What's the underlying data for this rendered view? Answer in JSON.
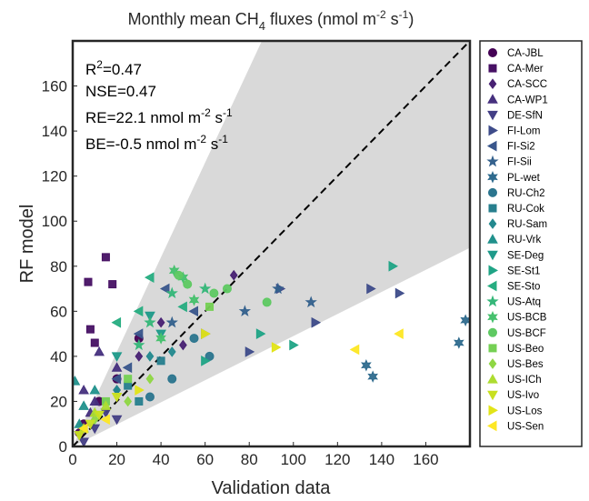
{
  "chart_data": {
    "type": "scatter",
    "title": [
      "Monthly mean CH",
      "4",
      " fluxes (nmol m",
      "-2",
      " s",
      "-1",
      ")"
    ],
    "x_label": "Validation data",
    "y_label": "RF model",
    "annotations": [
      [
        "R",
        "2",
        "=0.47"
      ],
      [
        "NSE=0.47"
      ],
      [
        "RE=22.1 nmol m",
        "-2",
        " s",
        "-1"
      ],
      [
        "BE=-0.5 nmol m",
        "-2",
        " s",
        "-1"
      ]
    ],
    "xlim": [
      0,
      180
    ],
    "ylim": [
      0,
      180
    ],
    "xticks": [
      0,
      20,
      40,
      60,
      80,
      100,
      120,
      140,
      160
    ],
    "yticks": [
      0,
      20,
      40,
      60,
      80,
      100,
      120,
      140,
      160
    ],
    "band": {
      "lower_slope": 0.49,
      "upper_slope": 2.1,
      "color": "#d9d9d9"
    },
    "reference_line": {
      "slope": 1,
      "color": "#000000"
    },
    "legend": "right",
    "series": [
      {
        "name": "CA-JBL",
        "color": "#440154",
        "marker": "o",
        "x": [
          5,
          20,
          30,
          12,
          3
        ],
        "y": [
          10,
          30,
          48,
          20,
          6
        ]
      },
      {
        "name": "CA-Mer",
        "color": "#471164",
        "marker": "s",
        "x": [
          7,
          15,
          18,
          10,
          8
        ],
        "y": [
          73,
          84,
          72,
          46,
          52
        ]
      },
      {
        "name": "CA-SCC",
        "color": "#482173",
        "marker": "d",
        "x": [
          73,
          30,
          40,
          50,
          20
        ],
        "y": [
          76,
          40,
          55,
          45,
          25
        ]
      },
      {
        "name": "CA-WP1",
        "color": "#46307e",
        "marker": "^",
        "x": [
          10,
          12,
          5,
          20,
          8
        ],
        "y": [
          20,
          42,
          25,
          35,
          15
        ]
      },
      {
        "name": "DE-SfN",
        "color": "#433e85",
        "marker": "v",
        "x": [
          5,
          10,
          15,
          20,
          3
        ],
        "y": [
          2,
          8,
          15,
          12,
          5
        ]
      },
      {
        "name": "FI-Lom",
        "color": "#3e4c8a",
        "marker": ">",
        "x": [
          60,
          94,
          135,
          148,
          110,
          80
        ],
        "y": [
          50,
          70,
          70,
          68,
          55,
          42
        ]
      },
      {
        "name": "FI-Si2",
        "color": "#39568c",
        "marker": "<",
        "x": [
          42,
          30,
          25,
          55,
          20
        ],
        "y": [
          70,
          50,
          35,
          60,
          30
        ]
      },
      {
        "name": "FI-Sii",
        "color": "#34618d",
        "marker": "p",
        "x": [
          93,
          108,
          78,
          45
        ],
        "y": [
          70,
          64,
          60,
          55
        ]
      },
      {
        "name": "PL-wet",
        "color": "#2f6b8e",
        "marker": "h",
        "x": [
          178,
          175,
          133,
          136
        ],
        "y": [
          56,
          46,
          36,
          31
        ]
      },
      {
        "name": "RU-Ch2",
        "color": "#2b758e",
        "marker": "o",
        "x": [
          55,
          62,
          35,
          45
        ],
        "y": [
          48,
          40,
          22,
          30
        ]
      },
      {
        "name": "RU-Cok",
        "color": "#277f8e",
        "marker": "s",
        "x": [
          25,
          40,
          30
        ],
        "y": [
          27,
          38,
          20
        ]
      },
      {
        "name": "RU-Sam",
        "color": "#23898e",
        "marker": "d",
        "x": [
          20,
          35,
          45
        ],
        "y": [
          25,
          40,
          42
        ]
      },
      {
        "name": "RU-Vrk",
        "color": "#21918c",
        "marker": "^",
        "x": [
          1,
          10,
          5,
          3
        ],
        "y": [
          29,
          25,
          18,
          10
        ]
      },
      {
        "name": "SE-Deg",
        "color": "#1f9a8a",
        "marker": "v",
        "x": [
          20,
          40,
          35
        ],
        "y": [
          40,
          50,
          58
        ]
      },
      {
        "name": "SE-St1",
        "color": "#20a486",
        "marker": ">",
        "x": [
          145,
          85,
          60,
          100
        ],
        "y": [
          80,
          50,
          38,
          45
        ]
      },
      {
        "name": "SE-Sto",
        "color": "#27ad81",
        "marker": "<",
        "x": [
          35,
          50,
          20,
          30
        ],
        "y": [
          75,
          62,
          55,
          60
        ]
      },
      {
        "name": "US-Atq",
        "color": "#35b779",
        "marker": "p",
        "x": [
          35,
          45,
          60,
          30
        ],
        "y": [
          55,
          68,
          70,
          45
        ]
      },
      {
        "name": "US-BCB",
        "color": "#47c16e",
        "marker": "h",
        "x": [
          46,
          50,
          55,
          40
        ],
        "y": [
          78,
          75,
          65,
          48
        ]
      },
      {
        "name": "US-BCF",
        "color": "#5ec962",
        "marker": "o",
        "x": [
          48,
          52,
          64,
          70,
          88
        ],
        "y": [
          76,
          72,
          68,
          70,
          64
        ]
      },
      {
        "name": "US-Beo",
        "color": "#75d054",
        "marker": "s",
        "x": [
          62,
          15,
          25
        ],
        "y": [
          62,
          20,
          30
        ]
      },
      {
        "name": "US-Bes",
        "color": "#8fd744",
        "marker": "d",
        "x": [
          25,
          35,
          10
        ],
        "y": [
          20,
          30,
          12
        ]
      },
      {
        "name": "US-ICh",
        "color": "#addc30",
        "marker": "^",
        "x": [
          10,
          5,
          15
        ],
        "y": [
          15,
          8,
          18
        ]
      },
      {
        "name": "US-Ivo",
        "color": "#c8e020",
        "marker": "v",
        "x": [
          8,
          3,
          12,
          20
        ],
        "y": [
          10,
          5,
          14,
          22
        ]
      },
      {
        "name": "US-Los",
        "color": "#e2e418",
        "marker": ">",
        "x": [
          92,
          60,
          30
        ],
        "y": [
          44,
          50,
          25
        ]
      },
      {
        "name": "US-Sen",
        "color": "#fde725",
        "marker": "<",
        "x": [
          128,
          148,
          15,
          5
        ],
        "y": [
          43,
          50,
          12,
          8
        ]
      }
    ]
  }
}
